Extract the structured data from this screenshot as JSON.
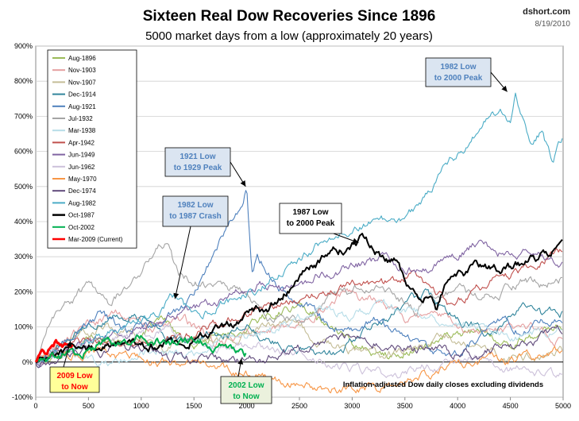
{
  "header": {
    "title": "Sixteen Real Dow Recoveries Since 1896",
    "subtitle": "5000 market days from a low (approximately 20 years)",
    "source": "dshort.com",
    "date": "8/19/2010"
  },
  "chart_data": {
    "type": "line",
    "title": "Sixteen Real Dow Recoveries Since 1896",
    "subtitle": "5000 market days from a low (approximately 20 years)",
    "xlabel": "",
    "ylabel": "",
    "xlim": [
      0,
      5000
    ],
    "ylim": [
      -100,
      900
    ],
    "x_ticks": [
      0,
      500,
      1000,
      1500,
      2000,
      2500,
      3000,
      3500,
      4000,
      4500,
      5000
    ],
    "y_ticks": [
      -100,
      0,
      100,
      200,
      300,
      400,
      500,
      600,
      700,
      800,
      900
    ],
    "y_tick_labels": [
      "-100%",
      "0%",
      "100%",
      "200%",
      "300%",
      "400%",
      "500%",
      "600%",
      "700%",
      "800%",
      "900%"
    ],
    "grid": "horizontal",
    "legend_position": "top-left",
    "note": "Inflation-adjusted Dow daily closes excluding dividends",
    "series": [
      {
        "name": "Aug-1896",
        "color": "#9bbb59",
        "x": [
          0,
          300,
          600,
          900,
          1200,
          1500,
          1800,
          2000,
          2200,
          2500,
          2800,
          3000,
          3300,
          3600,
          3900,
          4200,
          4500,
          4800,
          5000
        ],
        "values": [
          0,
          40,
          70,
          60,
          120,
          40,
          80,
          90,
          130,
          170,
          100,
          60,
          20,
          40,
          70,
          90,
          60,
          80,
          110
        ]
      },
      {
        "name": "Nov-1903",
        "color": "#e59fa0",
        "x": [
          0,
          200,
          500,
          800,
          1100,
          1400,
          1700,
          2000,
          2300,
          2600,
          2900,
          3200,
          3500,
          3800,
          4100,
          4400,
          4700,
          5000
        ],
        "values": [
          0,
          40,
          110,
          140,
          90,
          120,
          50,
          80,
          90,
          130,
          200,
          180,
          120,
          140,
          80,
          90,
          100,
          60
        ]
      },
      {
        "name": "Nov-1907",
        "color": "#c4bd97",
        "x": [
          0,
          300,
          600,
          900,
          1200,
          1500,
          1800,
          2100,
          2400,
          2700,
          3000,
          3300,
          3600,
          3900,
          4200,
          4500,
          4800,
          5000
        ],
        "values": [
          0,
          60,
          90,
          80,
          40,
          70,
          60,
          100,
          110,
          60,
          30,
          20,
          40,
          80,
          40,
          10,
          20,
          30
        ]
      },
      {
        "name": "Dec-1914",
        "color": "#31859c",
        "x": [
          0,
          300,
          600,
          900,
          1200,
          1500,
          1800,
          2000,
          2200,
          2500,
          2800,
          3100,
          3400,
          3700,
          4000,
          4300,
          4600,
          4800,
          5000
        ],
        "values": [
          0,
          70,
          120,
          140,
          80,
          60,
          90,
          110,
          60,
          40,
          20,
          80,
          140,
          190,
          120,
          90,
          150,
          130,
          140
        ]
      },
      {
        "name": "Aug-1921",
        "color": "#4f81bd",
        "x": [
          0,
          300,
          600,
          900,
          1200,
          1400,
          1600,
          1750,
          1850,
          1950,
          2000,
          2050,
          2100,
          2200,
          2400,
          2600,
          2800,
          3000,
          3200,
          3400,
          3600,
          3800,
          4000,
          4200,
          4400,
          4600,
          4800,
          5000
        ],
        "values": [
          0,
          60,
          130,
          90,
          120,
          160,
          250,
          340,
          400,
          430,
          510,
          250,
          300,
          260,
          180,
          150,
          110,
          80,
          120,
          90,
          60,
          20,
          30,
          70,
          120,
          90,
          110,
          130
        ]
      },
      {
        "name": "Jul-1932",
        "color": "#a5a5a5",
        "x": [
          0,
          100,
          300,
          500,
          700,
          900,
          1100,
          1250,
          1300,
          1350,
          1450,
          1600,
          1800,
          2000,
          2200,
          2500,
          2800,
          3000,
          3200,
          3400,
          3600,
          3800,
          4000,
          4200,
          4400,
          4600,
          4800,
          5000
        ],
        "values": [
          0,
          100,
          160,
          220,
          160,
          230,
          300,
          350,
          290,
          250,
          240,
          220,
          210,
          190,
          130,
          120,
          180,
          200,
          230,
          180,
          150,
          190,
          210,
          180,
          200,
          230,
          220,
          240
        ]
      },
      {
        "name": "Mar-1938",
        "color": "#b7dde8",
        "x": [
          0,
          300,
          600,
          900,
          1200,
          1500,
          1800,
          2100,
          2400,
          2700,
          3000,
          3300,
          3600,
          3900,
          4200,
          4500,
          4800,
          5000
        ],
        "values": [
          0,
          20,
          -10,
          10,
          30,
          20,
          60,
          80,
          110,
          150,
          130,
          170,
          140,
          120,
          100,
          70,
          90,
          80
        ]
      },
      {
        "name": "Apr-1942",
        "color": "#c0504d",
        "x": [
          0,
          300,
          600,
          900,
          1200,
          1500,
          1800,
          2100,
          2400,
          2700,
          3000,
          3300,
          3600,
          3900,
          4200,
          4500,
          4800,
          5000
        ],
        "values": [
          0,
          40,
          60,
          50,
          60,
          80,
          110,
          150,
          170,
          190,
          230,
          220,
          250,
          170,
          210,
          250,
          290,
          320
        ]
      },
      {
        "name": "Jun-1949",
        "color": "#8064a2",
        "x": [
          0,
          300,
          600,
          900,
          1200,
          1500,
          1800,
          2100,
          2400,
          2700,
          3000,
          3300,
          3600,
          3900,
          4200,
          4500,
          4800,
          5000
        ],
        "values": [
          0,
          40,
          60,
          90,
          120,
          150,
          180,
          220,
          210,
          250,
          270,
          300,
          260,
          280,
          340,
          300,
          310,
          290
        ]
      },
      {
        "name": "Jun-1962",
        "color": "#ccc1da",
        "x": [
          0,
          300,
          600,
          900,
          1200,
          1500,
          1800,
          2100,
          2400,
          2700,
          3000,
          3300,
          3600,
          3900,
          4200,
          4500,
          4800,
          5000
        ],
        "values": [
          0,
          30,
          60,
          70,
          90,
          60,
          40,
          50,
          30,
          0,
          -20,
          -40,
          -20,
          0,
          10,
          -20,
          -30,
          -40
        ]
      },
      {
        "name": "May-1970",
        "color": "#f79646",
        "x": [
          0,
          300,
          600,
          900,
          1200,
          1500,
          1800,
          2100,
          2400,
          2700,
          3000,
          3300,
          3600,
          3900,
          4200,
          4500,
          4800,
          5000
        ],
        "values": [
          0,
          20,
          30,
          10,
          0,
          -10,
          -20,
          -40,
          -60,
          -70,
          -80,
          -70,
          -50,
          -20,
          0,
          10,
          20,
          30
        ]
      },
      {
        "name": "Dec-1974",
        "color": "#604a7b",
        "x": [
          0,
          300,
          600,
          900,
          1200,
          1500,
          1800,
          2100,
          2400,
          2700,
          3000,
          3300,
          3600,
          3900,
          4200,
          4500,
          4800,
          5000
        ],
        "values": [
          0,
          20,
          30,
          40,
          20,
          10,
          0,
          10,
          20,
          50,
          70,
          60,
          40,
          30,
          20,
          50,
          70,
          100
        ]
      },
      {
        "name": "Aug-1982",
        "color": "#4bacc6",
        "x": [
          0,
          300,
          600,
          900,
          1200,
          1300,
          1500,
          1800,
          2100,
          2400,
          2700,
          3000,
          3300,
          3500,
          3700,
          3900,
          4100,
          4300,
          4400,
          4500,
          4550,
          4600,
          4700,
          4800,
          4900,
          5000
        ],
        "values": [
          0,
          40,
          70,
          100,
          140,
          180,
          130,
          170,
          210,
          280,
          340,
          380,
          400,
          420,
          470,
          560,
          620,
          700,
          720,
          680,
          760,
          700,
          620,
          660,
          560,
          640
        ]
      },
      {
        "name": "Oct-1987",
        "color": "#000000",
        "x": [
          0,
          200,
          400,
          600,
          800,
          1000,
          1200,
          1400,
          1600,
          1800,
          2000,
          2200,
          2400,
          2600,
          2800,
          2900,
          3000,
          3100,
          3200,
          3300,
          3400,
          3500,
          3600,
          3700,
          3800,
          3900,
          4000,
          4200,
          4400,
          4600,
          4800,
          5000
        ],
        "values": [
          0,
          20,
          40,
          40,
          50,
          40,
          50,
          60,
          80,
          100,
          130,
          150,
          210,
          270,
          310,
          320,
          330,
          350,
          320,
          300,
          290,
          230,
          180,
          190,
          150,
          230,
          240,
          270,
          260,
          280,
          300,
          330
        ]
      },
      {
        "name": "Oct-2002",
        "color": "#00b050",
        "x": [
          0,
          200,
          400,
          600,
          800,
          1000,
          1200,
          1400,
          1600,
          1800,
          2000
        ],
        "values": [
          0,
          20,
          30,
          50,
          60,
          70,
          60,
          50,
          60,
          40,
          20
        ]
      },
      {
        "name": "Mar-2009 (Current)",
        "color": "#ff0000",
        "x": [
          0,
          100,
          200,
          300,
          350
        ],
        "values": [
          0,
          30,
          50,
          60,
          55
        ]
      }
    ],
    "annotations": [
      {
        "text": [
          "1921 Low",
          "to 1929 Peak"
        ],
        "color": "#4f81bd",
        "target": [
          1990,
          500
        ]
      },
      {
        "text": [
          "1982 Low",
          "to 1987 Crash"
        ],
        "color": "#4f81bd",
        "target": [
          1320,
          180
        ]
      },
      {
        "text": [
          "1987 Low",
          "to 2000 Peak"
        ],
        "color": "#000000",
        "target": [
          3060,
          340
        ]
      },
      {
        "text": [
          "1982 Low",
          "to 2000 Peak"
        ],
        "color": "#4f81bd",
        "target": [
          4470,
          770
        ]
      },
      {
        "text": [
          "2009 Low",
          "to Now"
        ],
        "color": "#ff0000",
        "target": [
          330,
          60
        ]
      },
      {
        "text": [
          "2002 Low",
          "to Now"
        ],
        "color": "#00b050",
        "target": [
          1950,
          10
        ]
      }
    ]
  }
}
